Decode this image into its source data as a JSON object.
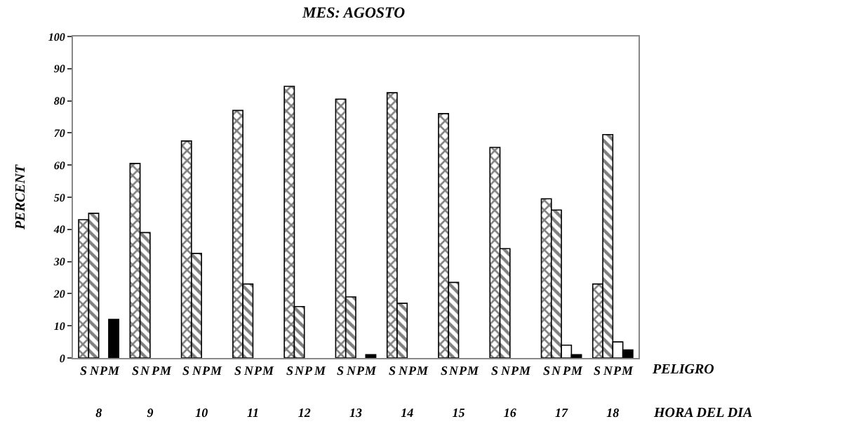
{
  "chart_data": {
    "type": "bar",
    "title": "MES: AGOSTO",
    "ylabel": "PERCENT",
    "xlabel": "HORA DEL DIA",
    "legend_title": "PELIGRO",
    "categories": [
      "8",
      "9",
      "10",
      "11",
      "12",
      "13",
      "14",
      "15",
      "16",
      "17",
      "18"
    ],
    "series": [
      {
        "name": "S",
        "color": "#000000",
        "values": [
          43,
          60.5,
          67.5,
          77,
          84.5,
          80.5,
          82.5,
          76,
          65.5,
          49.5,
          23
        ]
      },
      {
        "name": "N",
        "color": "#000000",
        "values": [
          45,
          39,
          32.5,
          23,
          16,
          19,
          17,
          23.5,
          34,
          46,
          69.5
        ]
      },
      {
        "name": "P",
        "color": "#ffffff",
        "values": [
          0,
          0,
          0,
          0,
          0,
          0,
          0,
          0,
          0,
          4,
          5
        ]
      },
      {
        "name": "M",
        "color": "#000000",
        "values": [
          12,
          0,
          0,
          0,
          0,
          1,
          0,
          0,
          0,
          1,
          2.5
        ]
      }
    ],
    "ylim": [
      0,
      100
    ],
    "yticks": [
      0,
      10,
      20,
      30,
      40,
      50,
      60,
      70,
      80,
      90,
      100
    ],
    "legend": false
  }
}
